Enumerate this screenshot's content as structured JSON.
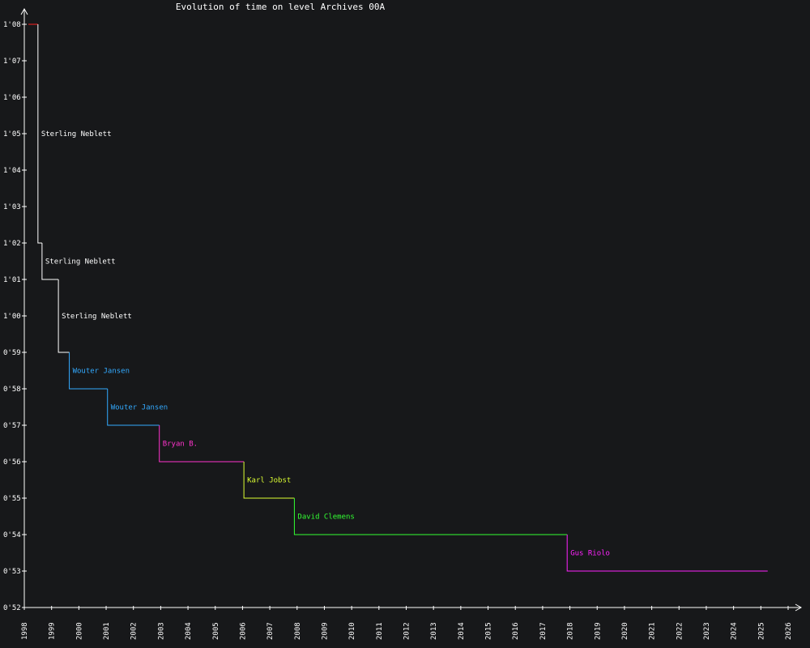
{
  "chart_data": {
    "type": "line",
    "title": "Evolution of time on level Archives 00A",
    "xlabel": "",
    "ylabel": "",
    "x_axis": {
      "min": 1998.0,
      "max": 2026.0,
      "ticks": [
        "1998",
        "1999",
        "2000",
        "2001",
        "2002",
        "2003",
        "2004",
        "2005",
        "2006",
        "2007",
        "2008",
        "2009",
        "2010",
        "2011",
        "2012",
        "2013",
        "2014",
        "2015",
        "2016",
        "2017",
        "2018",
        "2019",
        "2020",
        "2021",
        "2022",
        "2023",
        "2024",
        "2025",
        "2026"
      ]
    },
    "y_axis": {
      "min_seconds": 52,
      "max_seconds": 68,
      "ticks": [
        "0'52",
        "0'53",
        "0'54",
        "0'55",
        "0'56",
        "0'57",
        "0'58",
        "0'59",
        "1'00",
        "1'01",
        "1'02",
        "1'03",
        "1'04",
        "1'05",
        "1'06",
        "1'07",
        "1'08"
      ]
    },
    "initial": {
      "x_start": 1998.15,
      "x_end": 1998.5,
      "y_seconds": 68,
      "color": "#ff2020"
    },
    "steps": [
      {
        "x": 1998.5,
        "y_seconds": 62,
        "label": "Sterling Neblett",
        "color": "#ffffff"
      },
      {
        "x": 1998.65,
        "y_seconds": 61,
        "label": "Sterling Neblett",
        "color": "#ffffff"
      },
      {
        "x": 1999.25,
        "y_seconds": 59,
        "label": "Sterling Neblett",
        "color": "#ffffff"
      },
      {
        "x": 1999.65,
        "y_seconds": 58,
        "label": "Wouter Jansen",
        "color": "#33aaff"
      },
      {
        "x": 2001.05,
        "y_seconds": 57,
        "label": "Wouter Jansen",
        "color": "#33aaff"
      },
      {
        "x": 2002.95,
        "y_seconds": 56,
        "label": "Bryan B.",
        "color": "#ff33cc"
      },
      {
        "x": 2006.05,
        "y_seconds": 55,
        "label": "Karl Jobst",
        "color": "#ddff33"
      },
      {
        "x": 2007.9,
        "y_seconds": 54,
        "label": "David Clemens",
        "color": "#33ff33"
      },
      {
        "x": 2017.9,
        "y_seconds": 53,
        "label": "Gus Riolo",
        "color": "#ff22ff"
      }
    ],
    "end_x": 2025.25,
    "axis_color": "#ffffff",
    "grid": false
  }
}
